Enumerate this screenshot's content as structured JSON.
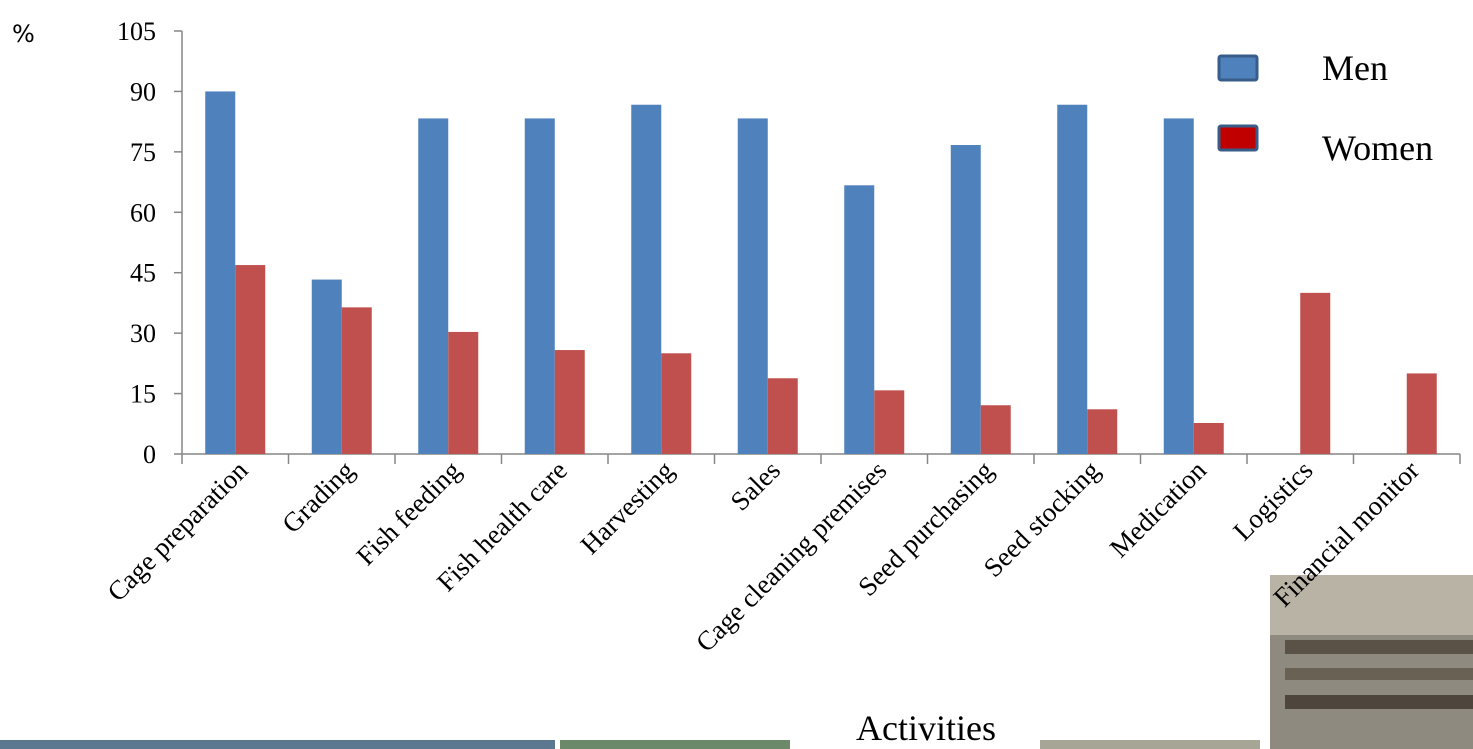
{
  "chart_data": {
    "type": "bar",
    "ylabel": "%",
    "xlabel": "Activities",
    "ylim": [
      0,
      105
    ],
    "yticks": [
      0,
      15,
      30,
      45,
      60,
      75,
      90,
      105
    ],
    "categories": [
      "Cage preparation",
      "Grading",
      "Fish feeding",
      "Fish health care",
      "Harvesting",
      "Sales",
      "Cage cleaning premises",
      "Seed purchasing",
      "Seed stocking",
      "Medication",
      "Logistics",
      "Financial monitor"
    ],
    "series": [
      {
        "name": "Men",
        "color": "#4f81bd",
        "values": [
          90,
          43.3,
          83.3,
          83.3,
          86.7,
          83.3,
          66.7,
          76.7,
          86.7,
          83.3,
          0,
          0
        ]
      },
      {
        "name": "Women",
        "color": "#c0504d",
        "values": [
          46.9,
          36.4,
          30.3,
          25.8,
          25,
          18.8,
          15.8,
          12.1,
          11.1,
          7.7,
          40,
          20
        ]
      }
    ],
    "legend": {
      "position": "top-right",
      "swatch_colors": [
        "#4f81bd",
        "#c00000"
      ]
    },
    "grid": false
  }
}
